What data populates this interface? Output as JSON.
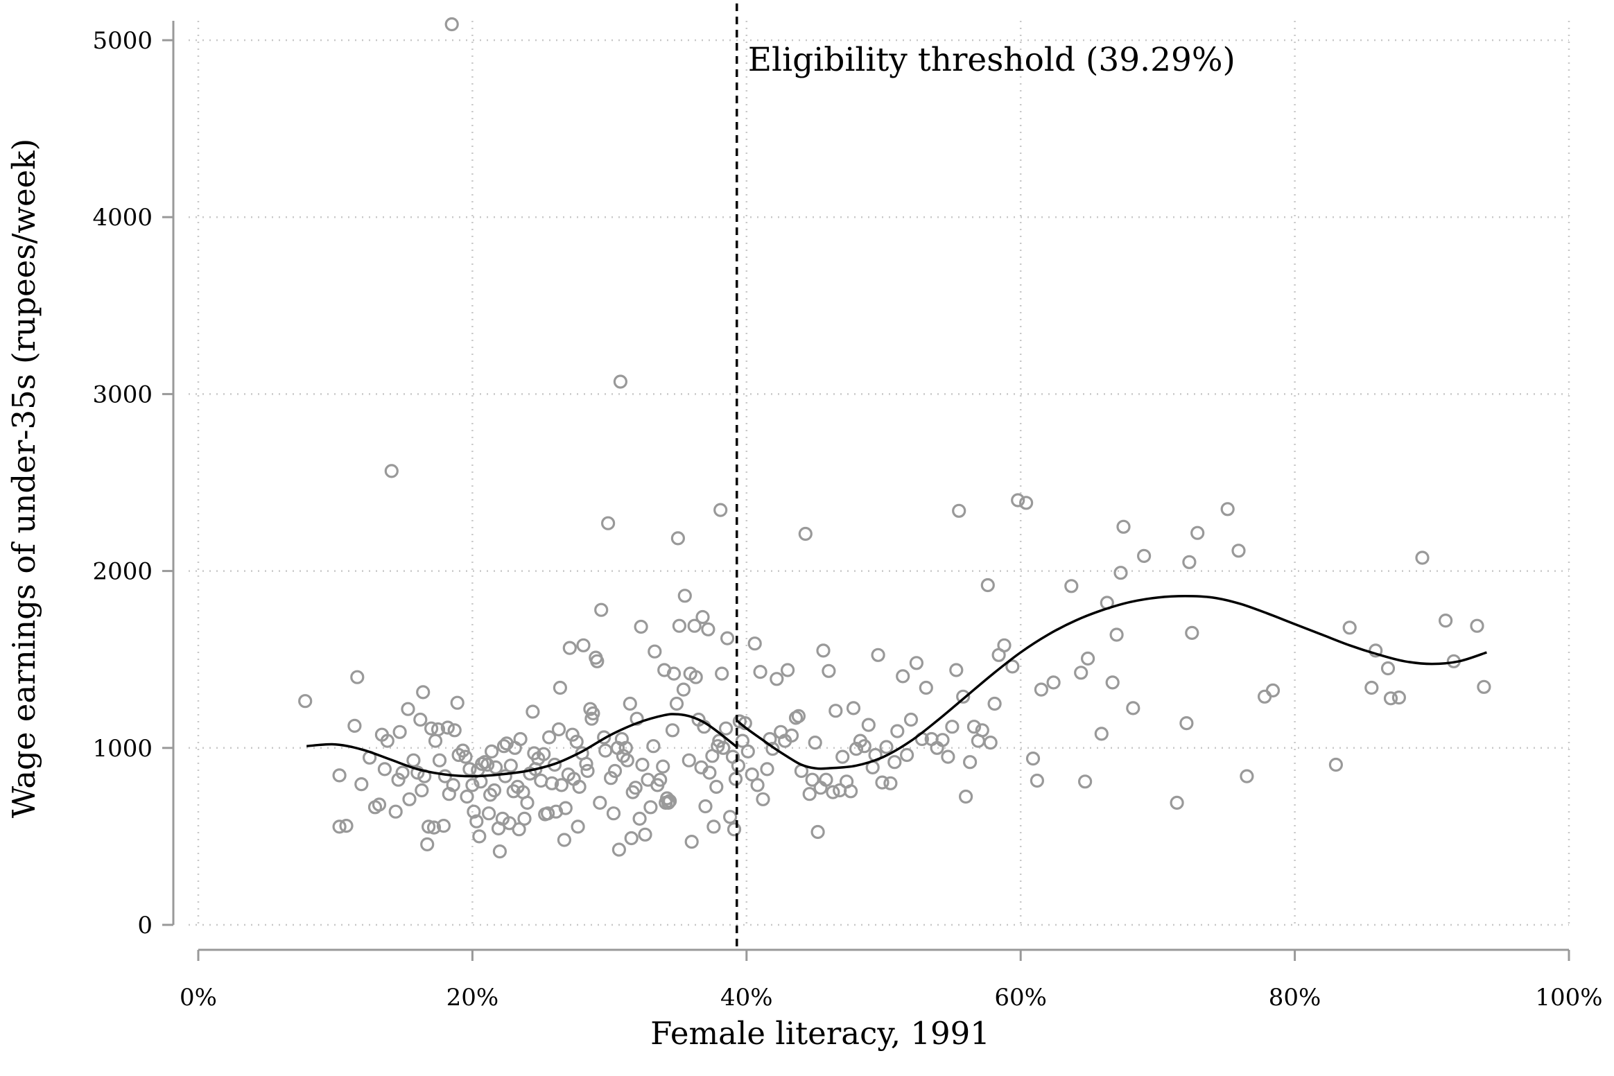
{
  "chart_data": {
    "type": "scatter",
    "title": "",
    "xlabel": "Female literacy, 1991",
    "ylabel": "Wage earnings of under-35s (rupees/week)",
    "xlim": [
      0,
      100
    ],
    "ylim": [
      0,
      5000
    ],
    "x_ticks": [
      0,
      20,
      40,
      60,
      80,
      100
    ],
    "x_tick_labels": [
      "0%",
      "20%",
      "40%",
      "60%",
      "80%",
      "100%"
    ],
    "y_ticks": [
      0,
      1000,
      2000,
      3000,
      4000,
      5000
    ],
    "y_tick_labels": [
      "0",
      "1000",
      "2000",
      "3000",
      "4000",
      "5000"
    ],
    "grid": true,
    "grid_style": "dotted",
    "threshold": {
      "x": 39.29,
      "label": "Eligibility threshold (39.29%)",
      "style": "dashed"
    },
    "colors": {
      "points": "#999999",
      "fit": "#000000",
      "threshold": "#000000",
      "axis": "#999999",
      "grid": "#c8c8c8"
    },
    "fit_left": {
      "x": [
        7.9,
        10,
        12,
        14,
        16,
        18,
        20,
        22,
        24,
        26,
        28,
        30,
        32,
        34,
        35,
        36,
        37,
        38,
        39.29
      ],
      "y": [
        1010,
        1020,
        990,
        935,
        880,
        850,
        840,
        850,
        870,
        910,
        980,
        1070,
        1140,
        1185,
        1190,
        1175,
        1140,
        1085,
        1005
      ]
    },
    "fit_right": {
      "x": [
        39.29,
        40,
        41,
        42,
        43,
        44,
        45,
        46,
        48,
        50,
        52,
        54,
        56,
        58,
        60,
        62,
        64,
        66,
        68,
        70,
        72,
        74,
        76,
        78,
        80,
        82,
        84,
        86,
        88,
        90,
        92,
        94
      ],
      "y": [
        1155,
        1110,
        1055,
        1000,
        950,
        905,
        885,
        885,
        900,
        950,
        1040,
        1160,
        1290,
        1420,
        1540,
        1640,
        1720,
        1780,
        1825,
        1850,
        1858,
        1850,
        1815,
        1760,
        1700,
        1640,
        1580,
        1530,
        1490,
        1475,
        1490,
        1540
      ]
    },
    "series": [
      {
        "points": [
          [
            7.8,
            1265
          ],
          [
            10.3,
            845
          ],
          [
            10.3,
            555
          ],
          [
            10.8,
            560
          ],
          [
            11.4,
            1125
          ],
          [
            11.6,
            1400
          ],
          [
            11.9,
            795
          ],
          [
            12.5,
            945
          ],
          [
            12.9,
            665
          ],
          [
            13.2,
            680
          ],
          [
            13.4,
            1075
          ],
          [
            13.6,
            880
          ],
          [
            13.8,
            1040
          ],
          [
            14.1,
            2565
          ],
          [
            14.4,
            640
          ],
          [
            14.6,
            820
          ],
          [
            14.7,
            1090
          ],
          [
            14.9,
            860
          ],
          [
            15.3,
            1220
          ],
          [
            15.4,
            710
          ],
          [
            15.7,
            930
          ],
          [
            16.0,
            860
          ],
          [
            16.2,
            1160
          ],
          [
            16.3,
            760
          ],
          [
            16.4,
            1315
          ],
          [
            16.5,
            840
          ],
          [
            16.7,
            455
          ],
          [
            16.8,
            555
          ],
          [
            17.0,
            1110
          ],
          [
            17.2,
            550
          ],
          [
            17.3,
            1040
          ],
          [
            17.5,
            1105
          ],
          [
            17.6,
            930
          ],
          [
            17.9,
            560
          ],
          [
            18.0,
            840
          ],
          [
            18.2,
            1115
          ],
          [
            18.3,
            740
          ],
          [
            18.5,
            5090
          ],
          [
            18.6,
            790
          ],
          [
            18.7,
            1100
          ],
          [
            18.9,
            1255
          ],
          [
            19.0,
            960
          ],
          [
            19.3,
            985
          ],
          [
            19.5,
            950
          ],
          [
            19.6,
            725
          ],
          [
            19.8,
            880
          ],
          [
            20.0,
            790
          ],
          [
            20.1,
            640
          ],
          [
            20.3,
            585
          ],
          [
            20.4,
            875
          ],
          [
            20.5,
            500
          ],
          [
            20.6,
            810
          ],
          [
            20.7,
            910
          ],
          [
            20.9,
            920
          ],
          [
            21.1,
            905
          ],
          [
            21.2,
            630
          ],
          [
            21.3,
            735
          ],
          [
            21.4,
            980
          ],
          [
            21.6,
            760
          ],
          [
            21.7,
            890
          ],
          [
            21.9,
            545
          ],
          [
            22.0,
            415
          ],
          [
            22.2,
            600
          ],
          [
            22.3,
            1010
          ],
          [
            22.4,
            840
          ],
          [
            22.5,
            1025
          ],
          [
            22.7,
            575
          ],
          [
            22.8,
            900
          ],
          [
            23.0,
            755
          ],
          [
            23.1,
            1000
          ],
          [
            23.3,
            780
          ],
          [
            23.4,
            540
          ],
          [
            23.5,
            1050
          ],
          [
            23.7,
            750
          ],
          [
            23.8,
            600
          ],
          [
            24.0,
            690
          ],
          [
            24.2,
            855
          ],
          [
            24.4,
            1205
          ],
          [
            24.5,
            970
          ],
          [
            24.6,
            880
          ],
          [
            24.8,
            940
          ],
          [
            25.0,
            815
          ],
          [
            25.2,
            965
          ],
          [
            25.3,
            625
          ],
          [
            25.5,
            630
          ],
          [
            25.6,
            1060
          ],
          [
            25.8,
            800
          ],
          [
            26.0,
            905
          ],
          [
            26.1,
            640
          ],
          [
            26.3,
            1105
          ],
          [
            26.4,
            1340
          ],
          [
            26.5,
            790
          ],
          [
            26.7,
            480
          ],
          [
            26.8,
            660
          ],
          [
            27.0,
            850
          ],
          [
            27.1,
            1565
          ],
          [
            27.3,
            1075
          ],
          [
            27.4,
            825
          ],
          [
            27.6,
            1035
          ],
          [
            27.7,
            555
          ],
          [
            27.8,
            780
          ],
          [
            28.0,
            970
          ],
          [
            28.1,
            1580
          ],
          [
            28.3,
            910
          ],
          [
            28.4,
            870
          ],
          [
            28.6,
            1220
          ],
          [
            28.7,
            1165
          ],
          [
            28.8,
            1195
          ],
          [
            29.0,
            1510
          ],
          [
            29.1,
            1490
          ],
          [
            29.3,
            690
          ],
          [
            29.4,
            1780
          ],
          [
            29.6,
            1060
          ],
          [
            29.7,
            985
          ],
          [
            29.9,
            2270
          ],
          [
            30.1,
            830
          ],
          [
            30.3,
            630
          ],
          [
            30.4,
            870
          ],
          [
            30.6,
            1000
          ],
          [
            30.7,
            425
          ],
          [
            30.8,
            3070
          ],
          [
            30.9,
            1050
          ],
          [
            31.0,
            955
          ],
          [
            31.2,
            1000
          ],
          [
            31.3,
            930
          ],
          [
            31.5,
            1250
          ],
          [
            31.6,
            490
          ],
          [
            31.7,
            750
          ],
          [
            31.9,
            775
          ],
          [
            32.0,
            1165
          ],
          [
            32.2,
            600
          ],
          [
            32.3,
            1685
          ],
          [
            32.4,
            905
          ],
          [
            32.6,
            510
          ],
          [
            32.8,
            820
          ],
          [
            33.0,
            665
          ],
          [
            33.2,
            1010
          ],
          [
            33.3,
            1545
          ],
          [
            33.5,
            790
          ],
          [
            33.7,
            820
          ],
          [
            33.9,
            895
          ],
          [
            34.0,
            1440
          ],
          [
            34.1,
            690
          ],
          [
            34.2,
            715
          ],
          [
            34.3,
            690
          ],
          [
            34.4,
            700
          ],
          [
            34.6,
            1100
          ],
          [
            34.7,
            1420
          ],
          [
            34.9,
            1250
          ],
          [
            35.0,
            2185
          ],
          [
            35.1,
            1690
          ],
          [
            35.4,
            1330
          ],
          [
            35.5,
            1860
          ],
          [
            35.8,
            930
          ],
          [
            35.9,
            1420
          ],
          [
            36.0,
            470
          ],
          [
            36.2,
            1690
          ],
          [
            36.3,
            1400
          ],
          [
            36.5,
            1160
          ],
          [
            36.7,
            890
          ],
          [
            36.8,
            1740
          ],
          [
            36.9,
            1120
          ],
          [
            37.0,
            670
          ],
          [
            37.2,
            1670
          ],
          [
            37.3,
            860
          ],
          [
            37.5,
            955
          ],
          [
            37.6,
            555
          ],
          [
            37.8,
            780
          ],
          [
            37.9,
            1010
          ],
          [
            38.0,
            1040
          ],
          [
            38.1,
            2345
          ],
          [
            38.2,
            1420
          ],
          [
            38.3,
            1000
          ],
          [
            38.5,
            1110
          ],
          [
            38.6,
            1620
          ],
          [
            38.8,
            610
          ],
          [
            39.0,
            950
          ],
          [
            39.1,
            540
          ],
          [
            39.2,
            825
          ],
          [
            39.4,
            900
          ],
          [
            39.5,
            1150
          ],
          [
            39.7,
            1040
          ],
          [
            39.9,
            1140
          ],
          [
            40.1,
            980
          ],
          [
            40.4,
            850
          ],
          [
            40.6,
            1590
          ],
          [
            40.8,
            790
          ],
          [
            41.0,
            1430
          ],
          [
            41.2,
            710
          ],
          [
            41.5,
            880
          ],
          [
            41.7,
            1050
          ],
          [
            41.9,
            995
          ],
          [
            42.2,
            1390
          ],
          [
            42.5,
            1090
          ],
          [
            42.8,
            1040
          ],
          [
            43.0,
            1440
          ],
          [
            43.3,
            1070
          ],
          [
            43.6,
            1170
          ],
          [
            43.8,
            1180
          ],
          [
            44.0,
            870
          ],
          [
            44.3,
            2210
          ],
          [
            44.6,
            740
          ],
          [
            44.8,
            820
          ],
          [
            45.0,
            1030
          ],
          [
            45.2,
            525
          ],
          [
            45.4,
            775
          ],
          [
            45.6,
            1550
          ],
          [
            45.8,
            820
          ],
          [
            46.0,
            1435
          ],
          [
            46.3,
            750
          ],
          [
            46.5,
            1210
          ],
          [
            46.8,
            760
          ],
          [
            47.0,
            950
          ],
          [
            47.3,
            810
          ],
          [
            47.6,
            755
          ],
          [
            47.8,
            1225
          ],
          [
            48.0,
            995
          ],
          [
            48.3,
            1040
          ],
          [
            48.6,
            1010
          ],
          [
            48.9,
            1130
          ],
          [
            49.2,
            890
          ],
          [
            49.4,
            960
          ],
          [
            49.6,
            1525
          ],
          [
            49.9,
            805
          ],
          [
            50.2,
            1005
          ],
          [
            50.5,
            800
          ],
          [
            50.8,
            920
          ],
          [
            51.0,
            1095
          ],
          [
            51.4,
            1405
          ],
          [
            51.7,
            960
          ],
          [
            52.0,
            1160
          ],
          [
            52.4,
            1480
          ],
          [
            52.8,
            1050
          ],
          [
            53.1,
            1340
          ],
          [
            53.5,
            1050
          ],
          [
            53.9,
            1000
          ],
          [
            54.3,
            1045
          ],
          [
            54.7,
            950
          ],
          [
            55.0,
            1120
          ],
          [
            55.3,
            1440
          ],
          [
            55.5,
            2340
          ],
          [
            55.8,
            1290
          ],
          [
            56.0,
            725
          ],
          [
            56.3,
            920
          ],
          [
            56.6,
            1120
          ],
          [
            56.9,
            1040
          ],
          [
            57.2,
            1100
          ],
          [
            57.6,
            1920
          ],
          [
            57.8,
            1030
          ],
          [
            58.1,
            1250
          ],
          [
            58.4,
            1525
          ],
          [
            58.8,
            1580
          ],
          [
            59.4,
            1460
          ],
          [
            59.8,
            2400
          ],
          [
            60.4,
            2385
          ],
          [
            60.9,
            940
          ],
          [
            61.2,
            815
          ],
          [
            61.5,
            1330
          ],
          [
            62.4,
            1370
          ],
          [
            63.7,
            1915
          ],
          [
            64.4,
            1425
          ],
          [
            64.7,
            810
          ],
          [
            64.9,
            1505
          ],
          [
            65.9,
            1080
          ],
          [
            66.3,
            1820
          ],
          [
            66.7,
            1370
          ],
          [
            67.0,
            1640
          ],
          [
            67.3,
            1990
          ],
          [
            67.5,
            2250
          ],
          [
            68.2,
            1225
          ],
          [
            69.0,
            2085
          ],
          [
            71.4,
            690
          ],
          [
            72.1,
            1140
          ],
          [
            72.3,
            2050
          ],
          [
            72.5,
            1650
          ],
          [
            72.9,
            2215
          ],
          [
            75.1,
            2350
          ],
          [
            75.9,
            2115
          ],
          [
            76.5,
            840
          ],
          [
            77.8,
            1290
          ],
          [
            78.4,
            1325
          ],
          [
            83.0,
            905
          ],
          [
            84.0,
            1680
          ],
          [
            85.6,
            1340
          ],
          [
            85.9,
            1550
          ],
          [
            86.8,
            1450
          ],
          [
            87.0,
            1280
          ],
          [
            87.6,
            1285
          ],
          [
            89.3,
            2075
          ],
          [
            91.0,
            1720
          ],
          [
            91.6,
            1490
          ],
          [
            93.3,
            1690
          ],
          [
            93.8,
            1345
          ]
        ]
      }
    ]
  }
}
